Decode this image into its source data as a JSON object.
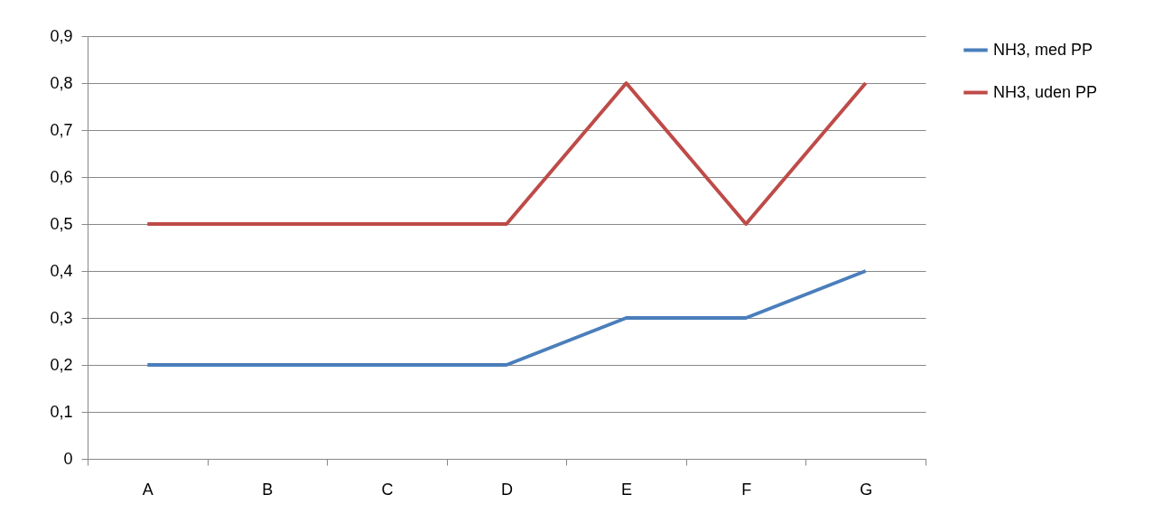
{
  "chart_data": {
    "type": "line",
    "categories": [
      "A",
      "B",
      "C",
      "D",
      "E",
      "F",
      "G"
    ],
    "series": [
      {
        "name": "NH3, med PP",
        "color": "#4a7ebb",
        "values": [
          0.2,
          0.2,
          0.2,
          0.2,
          0.3,
          0.3,
          0.4
        ]
      },
      {
        "name": "NH3, uden PP",
        "color": "#be4b48",
        "values": [
          0.5,
          0.5,
          0.5,
          0.5,
          0.8,
          0.5,
          0.8
        ]
      }
    ],
    "ylim": [
      0,
      0.9
    ],
    "yticks": [
      0,
      {
        "value": 0.1,
        "label": "0,1"
      },
      {
        "value": 0.2,
        "label": "0,2"
      },
      {
        "value": 0.3,
        "label": "0,3"
      },
      {
        "value": 0.4,
        "label": "0,4"
      },
      {
        "value": 0.5,
        "label": "0,5"
      },
      {
        "value": 0.6,
        "label": "0,6"
      },
      {
        "value": 0.7,
        "label": "0,7"
      },
      {
        "value": 0.8,
        "label": "0,8"
      },
      {
        "value": 0.9,
        "label": "0,9"
      }
    ],
    "grid": "y",
    "legend": "right",
    "marker": "none",
    "line_style": "solid"
  }
}
